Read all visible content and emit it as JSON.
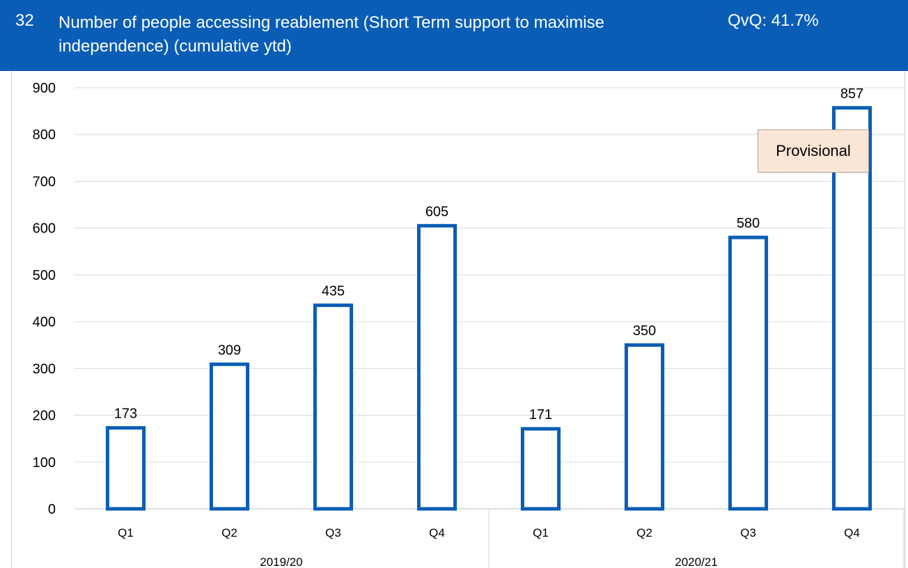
{
  "header": {
    "number": "32",
    "title": "Number of people accessing reablement (Short Term support to maximise independence) (cumulative ytd)",
    "qvq": "QvQ: 41.7%",
    "background_color": "#0a5db5"
  },
  "annotation": {
    "text": "Provisional",
    "background_color": "#fbe5d6"
  },
  "chart_data": {
    "type": "bar",
    "title": "",
    "xlabel": "",
    "ylabel": "",
    "ylim": [
      0,
      900
    ],
    "yticks": [
      0,
      100,
      200,
      300,
      400,
      500,
      600,
      700,
      800,
      900
    ],
    "grid": true,
    "bar_style": "outline",
    "bar_color": "#0a5db5",
    "groups": [
      {
        "label": "2019/20",
        "categories": [
          "Q1",
          "Q2",
          "Q3",
          "Q4"
        ],
        "values": [
          173,
          309,
          435,
          605
        ]
      },
      {
        "label": "2020/21",
        "categories": [
          "Q1",
          "Q2",
          "Q3",
          "Q4"
        ],
        "values": [
          171,
          350,
          580,
          857
        ]
      }
    ]
  }
}
